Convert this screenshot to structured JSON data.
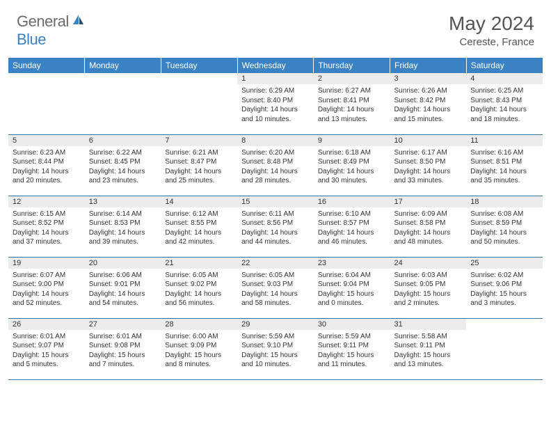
{
  "logo": {
    "text1": "General",
    "text2": "Blue"
  },
  "title": "May 2024",
  "location": "Cereste, France",
  "colors": {
    "header_bg": "#3b82c4",
    "header_fg": "#ffffff",
    "daynum_bg": "#ececec",
    "row_border": "#3b6fa0",
    "logo_gray": "#6b6b6b",
    "logo_blue": "#3b82c4"
  },
  "day_headers": [
    "Sunday",
    "Monday",
    "Tuesday",
    "Wednesday",
    "Thursday",
    "Friday",
    "Saturday"
  ],
  "weeks": [
    [
      null,
      null,
      null,
      {
        "n": "1",
        "sr": "6:29 AM",
        "ss": "8:40 PM",
        "dl": "14 hours and 10 minutes."
      },
      {
        "n": "2",
        "sr": "6:27 AM",
        "ss": "8:41 PM",
        "dl": "14 hours and 13 minutes."
      },
      {
        "n": "3",
        "sr": "6:26 AM",
        "ss": "8:42 PM",
        "dl": "14 hours and 15 minutes."
      },
      {
        "n": "4",
        "sr": "6:25 AM",
        "ss": "8:43 PM",
        "dl": "14 hours and 18 minutes."
      }
    ],
    [
      {
        "n": "5",
        "sr": "6:23 AM",
        "ss": "8:44 PM",
        "dl": "14 hours and 20 minutes."
      },
      {
        "n": "6",
        "sr": "6:22 AM",
        "ss": "8:45 PM",
        "dl": "14 hours and 23 minutes."
      },
      {
        "n": "7",
        "sr": "6:21 AM",
        "ss": "8:47 PM",
        "dl": "14 hours and 25 minutes."
      },
      {
        "n": "8",
        "sr": "6:20 AM",
        "ss": "8:48 PM",
        "dl": "14 hours and 28 minutes."
      },
      {
        "n": "9",
        "sr": "6:18 AM",
        "ss": "8:49 PM",
        "dl": "14 hours and 30 minutes."
      },
      {
        "n": "10",
        "sr": "6:17 AM",
        "ss": "8:50 PM",
        "dl": "14 hours and 33 minutes."
      },
      {
        "n": "11",
        "sr": "6:16 AM",
        "ss": "8:51 PM",
        "dl": "14 hours and 35 minutes."
      }
    ],
    [
      {
        "n": "12",
        "sr": "6:15 AM",
        "ss": "8:52 PM",
        "dl": "14 hours and 37 minutes."
      },
      {
        "n": "13",
        "sr": "6:14 AM",
        "ss": "8:53 PM",
        "dl": "14 hours and 39 minutes."
      },
      {
        "n": "14",
        "sr": "6:12 AM",
        "ss": "8:55 PM",
        "dl": "14 hours and 42 minutes."
      },
      {
        "n": "15",
        "sr": "6:11 AM",
        "ss": "8:56 PM",
        "dl": "14 hours and 44 minutes."
      },
      {
        "n": "16",
        "sr": "6:10 AM",
        "ss": "8:57 PM",
        "dl": "14 hours and 46 minutes."
      },
      {
        "n": "17",
        "sr": "6:09 AM",
        "ss": "8:58 PM",
        "dl": "14 hours and 48 minutes."
      },
      {
        "n": "18",
        "sr": "6:08 AM",
        "ss": "8:59 PM",
        "dl": "14 hours and 50 minutes."
      }
    ],
    [
      {
        "n": "19",
        "sr": "6:07 AM",
        "ss": "9:00 PM",
        "dl": "14 hours and 52 minutes."
      },
      {
        "n": "20",
        "sr": "6:06 AM",
        "ss": "9:01 PM",
        "dl": "14 hours and 54 minutes."
      },
      {
        "n": "21",
        "sr": "6:05 AM",
        "ss": "9:02 PM",
        "dl": "14 hours and 56 minutes."
      },
      {
        "n": "22",
        "sr": "6:05 AM",
        "ss": "9:03 PM",
        "dl": "14 hours and 58 minutes."
      },
      {
        "n": "23",
        "sr": "6:04 AM",
        "ss": "9:04 PM",
        "dl": "15 hours and 0 minutes."
      },
      {
        "n": "24",
        "sr": "6:03 AM",
        "ss": "9:05 PM",
        "dl": "15 hours and 2 minutes."
      },
      {
        "n": "25",
        "sr": "6:02 AM",
        "ss": "9:06 PM",
        "dl": "15 hours and 3 minutes."
      }
    ],
    [
      {
        "n": "26",
        "sr": "6:01 AM",
        "ss": "9:07 PM",
        "dl": "15 hours and 5 minutes."
      },
      {
        "n": "27",
        "sr": "6:01 AM",
        "ss": "9:08 PM",
        "dl": "15 hours and 7 minutes."
      },
      {
        "n": "28",
        "sr": "6:00 AM",
        "ss": "9:09 PM",
        "dl": "15 hours and 8 minutes."
      },
      {
        "n": "29",
        "sr": "5:59 AM",
        "ss": "9:10 PM",
        "dl": "15 hours and 10 minutes."
      },
      {
        "n": "30",
        "sr": "5:59 AM",
        "ss": "9:11 PM",
        "dl": "15 hours and 11 minutes."
      },
      {
        "n": "31",
        "sr": "5:58 AM",
        "ss": "9:11 PM",
        "dl": "15 hours and 13 minutes."
      },
      null
    ]
  ],
  "labels": {
    "sunrise": "Sunrise:",
    "sunset": "Sunset:",
    "daylight": "Daylight:"
  }
}
